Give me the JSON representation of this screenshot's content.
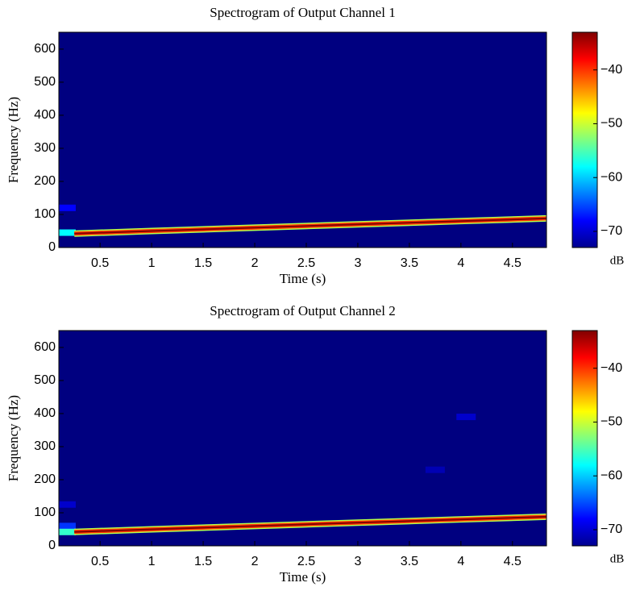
{
  "chart_data": [
    {
      "type": "spectrogram",
      "title": "Spectrogram of Output Channel 1",
      "xlabel": "Time (s)",
      "ylabel": "Frequency (Hz)",
      "colorbar_label": "dB",
      "colormap": "jet",
      "xlim": [
        0.1,
        4.83
      ],
      "ylim": [
        0,
        651
      ],
      "xticks": [
        0.5,
        1,
        1.5,
        2,
        2.5,
        3,
        3.5,
        4,
        4.5
      ],
      "yticks": [
        0,
        100,
        200,
        300,
        400,
        500,
        600
      ],
      "clim": [
        -73,
        -33
      ],
      "cticks": [
        {
          "value": -70,
          "label": "−70"
        },
        {
          "value": -60,
          "label": "−60"
        },
        {
          "value": -50,
          "label": "−50"
        },
        {
          "value": -40,
          "label": "−40"
        }
      ],
      "floor_db": -73,
      "x": [
        0.25,
        1,
        2,
        3,
        4,
        4.83
      ],
      "values": [
        42,
        50,
        60,
        70,
        80,
        88
      ],
      "ridge_db": -33,
      "spots": [
        {
          "x": 0.17,
          "y": 120,
          "db": -68
        },
        {
          "x": 0.17,
          "y": 45,
          "db": -58
        }
      ]
    },
    {
      "type": "spectrogram",
      "title": "Spectrogram of Output Channel 2",
      "xlabel": "Time (s)",
      "ylabel": "Frequency (Hz)",
      "colorbar_label": "dB",
      "colormap": "jet",
      "xlim": [
        0.1,
        4.83
      ],
      "ylim": [
        0,
        651
      ],
      "xticks": [
        0.5,
        1,
        1.5,
        2,
        2.5,
        3,
        3.5,
        4,
        4.5
      ],
      "yticks": [
        0,
        100,
        200,
        300,
        400,
        500,
        600
      ],
      "clim": [
        -73,
        -33
      ],
      "cticks": [
        {
          "value": -70,
          "label": "−70"
        },
        {
          "value": -60,
          "label": "−60"
        },
        {
          "value": -50,
          "label": "−50"
        },
        {
          "value": -40,
          "label": "−40"
        }
      ],
      "floor_db": -73,
      "x": [
        0.25,
        1,
        2,
        3,
        4,
        4.83
      ],
      "values": [
        42,
        50,
        60,
        70,
        80,
        88
      ],
      "ridge_db": -33,
      "spots": [
        {
          "x": 0.17,
          "y": 125,
          "db": -70
        },
        {
          "x": 0.17,
          "y": 60,
          "db": -66
        },
        {
          "x": 0.17,
          "y": 42,
          "db": -56
        },
        {
          "x": 3.75,
          "y": 230,
          "db": -71
        },
        {
          "x": 4.05,
          "y": 390,
          "db": -70
        }
      ]
    }
  ]
}
